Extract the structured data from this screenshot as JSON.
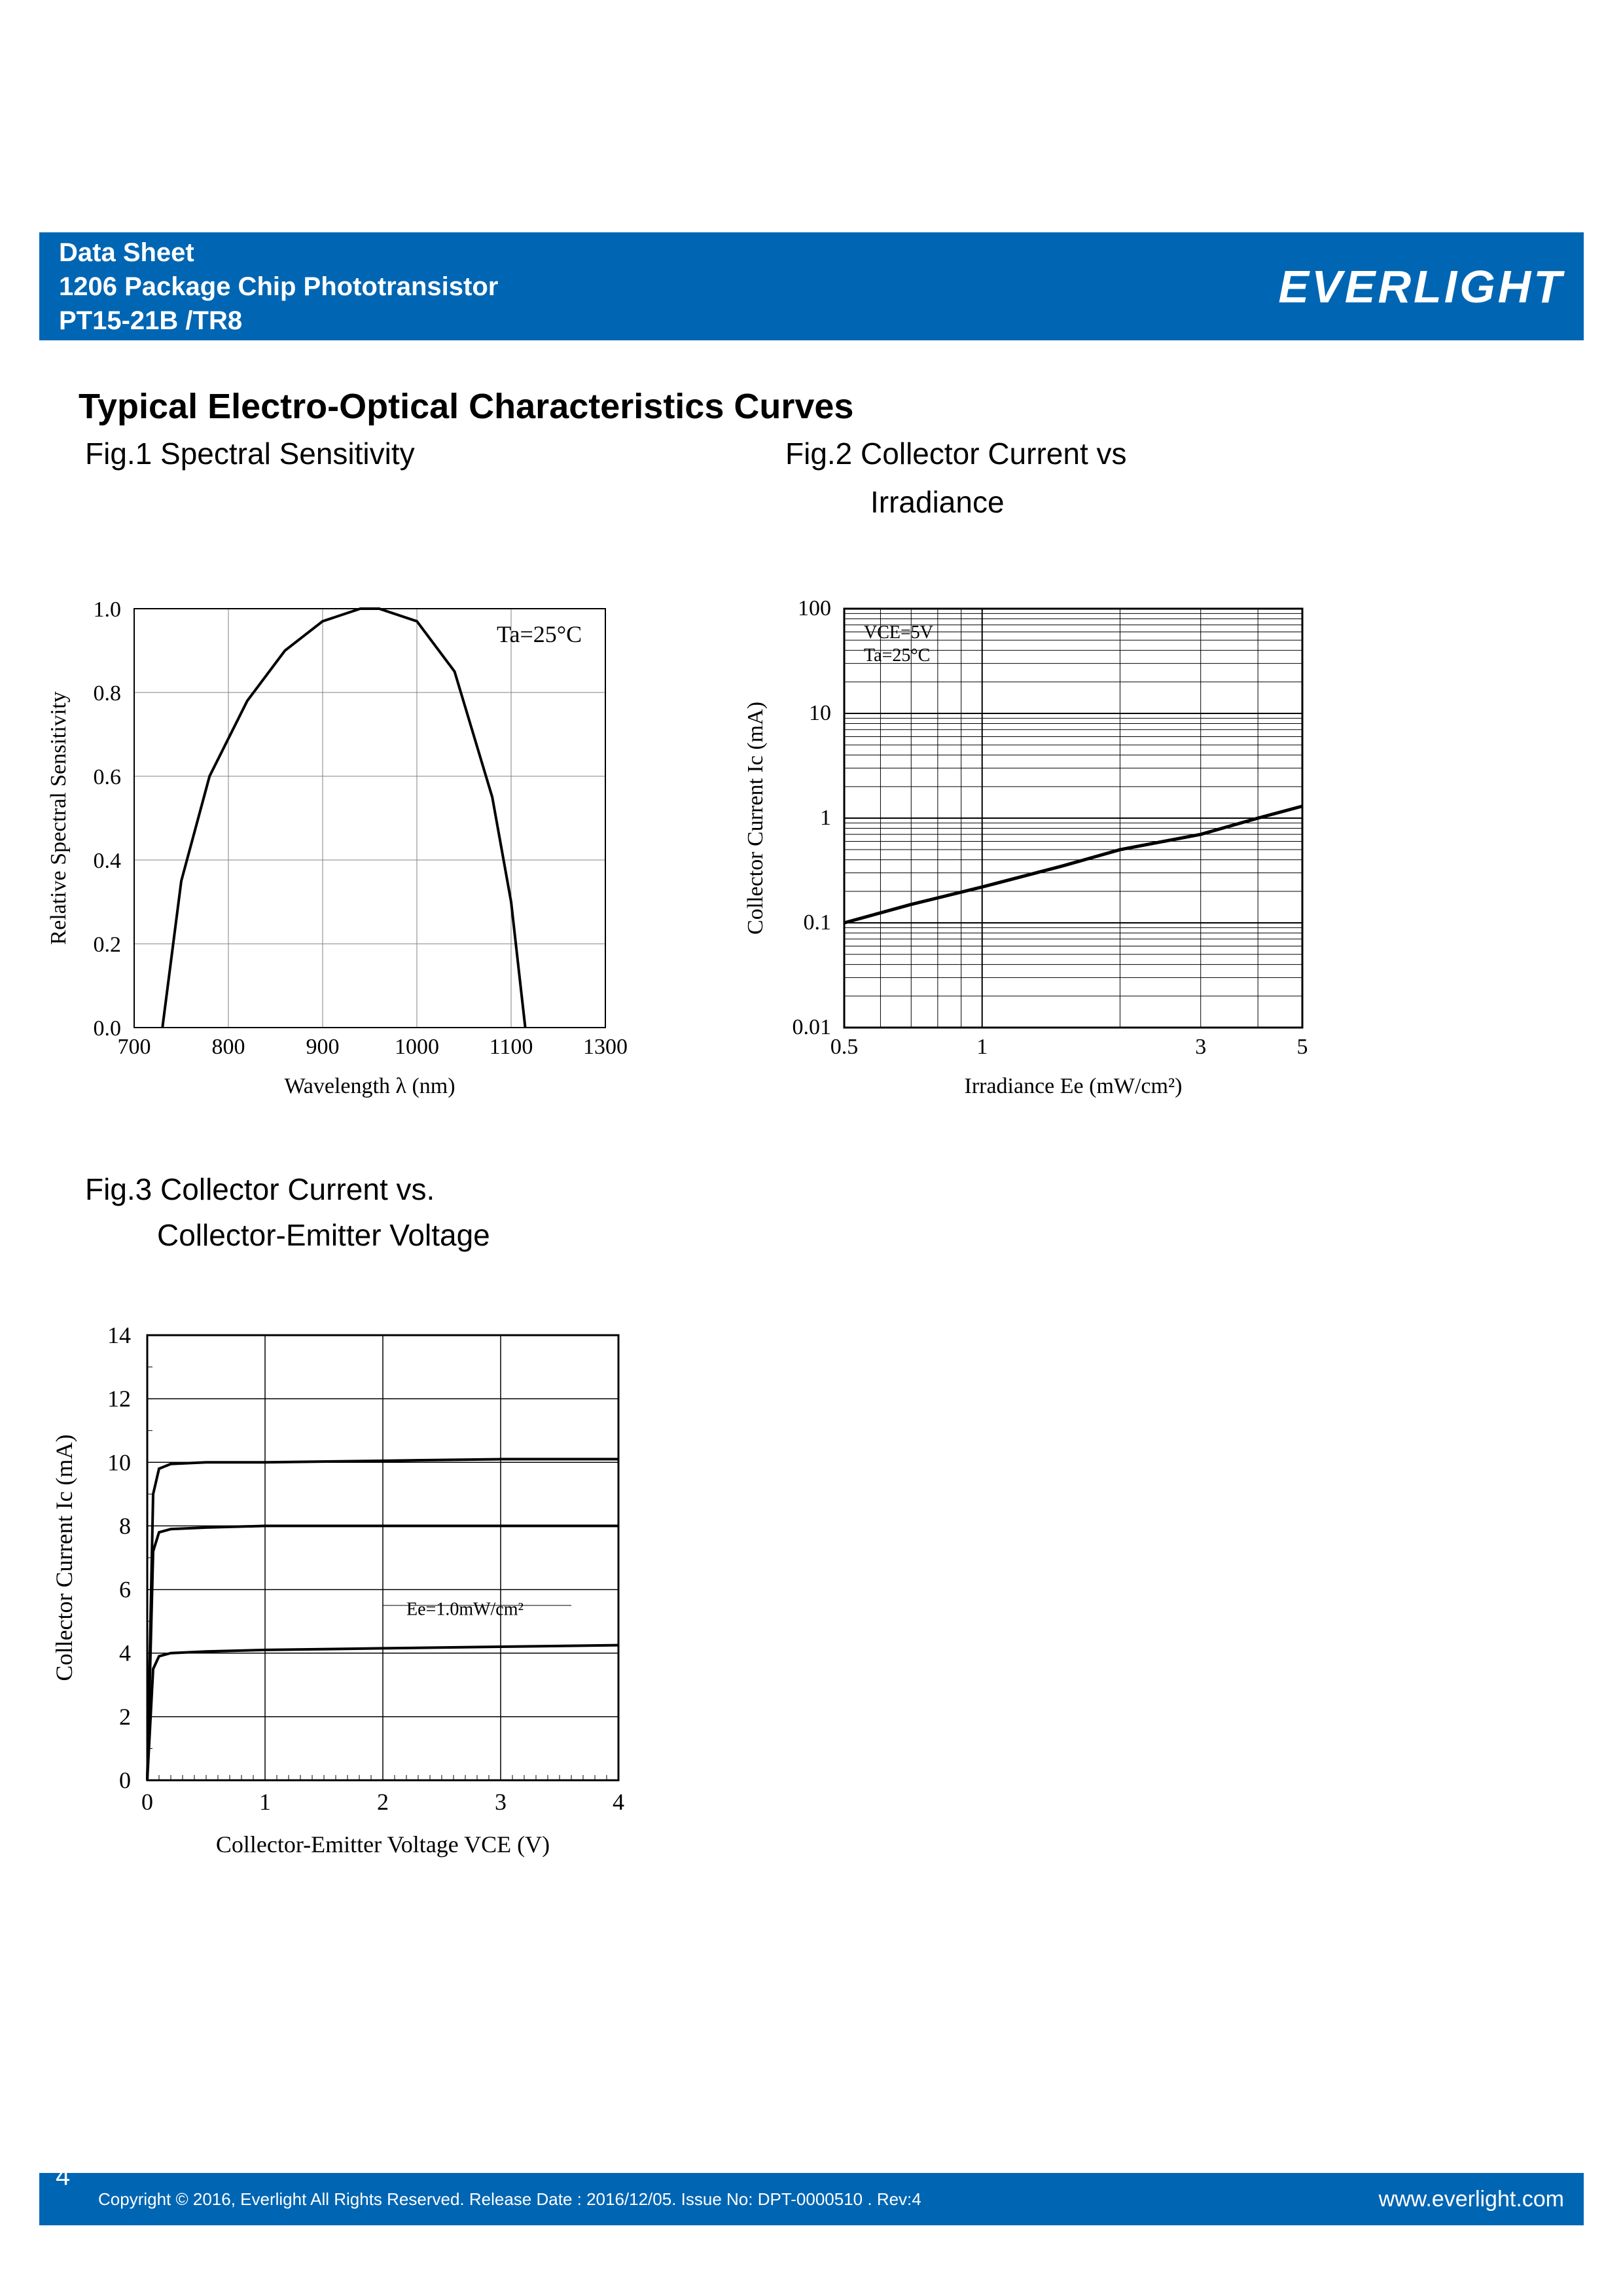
{
  "header": {
    "line1": "Data Sheet",
    "line2": "1206 Package Chip Phototransistor",
    "line3": "PT15-21B /TR8",
    "logo_text": "EVERLIGHT"
  },
  "section_title": "Typical Electro-Optical Characteristics Curves",
  "figures": {
    "fig1": {
      "caption": "Fig.1 Spectral Sensitivity",
      "annotation": "Ta=25°C",
      "type": "line",
      "xlabel": "Wavelength λ (nm)",
      "ylabel": "Relative Spectral Sensitivity",
      "xlim": [
        700,
        1300
      ],
      "ylim": [
        0,
        1.0
      ],
      "xticks": [
        700,
        800,
        900,
        1000,
        1100,
        1300
      ],
      "yticks": [
        0,
        0.2,
        0.4,
        0.6,
        0.8,
        1.0
      ],
      "xscale": "linear",
      "yscale": "linear",
      "grid": true,
      "grid_color": "#808080",
      "line_color": "#000000",
      "line_width": 3,
      "background_color": "#ffffff",
      "label_fontsize": 28,
      "tick_fontsize": 26,
      "data": {
        "x": [
          730,
          750,
          780,
          820,
          860,
          900,
          940,
          960,
          1000,
          1040,
          1080,
          1100,
          1130
        ],
        "y": [
          0,
          0.35,
          0.6,
          0.78,
          0.9,
          0.97,
          1.0,
          1.0,
          0.97,
          0.85,
          0.55,
          0.3,
          0
        ]
      }
    },
    "fig2": {
      "caption_line1": "Fig.2 Collector Current vs",
      "caption_line2": "Irradiance",
      "annotation_line1": "VCE=5V",
      "annotation_line2": "Ta=25°C",
      "type": "line",
      "xlabel": "Irradiance Ee (mW/cm²)",
      "ylabel": "Collector Current Ic (mA)",
      "xlim": [
        0.5,
        5
      ],
      "ylim": [
        0.01,
        100
      ],
      "xticks": [
        0.5,
        1,
        3,
        5
      ],
      "yticks": [
        0.01,
        0.1,
        1,
        10,
        100
      ],
      "xscale": "log",
      "yscale": "log",
      "grid": true,
      "grid_color": "#000000",
      "line_color": "#000000",
      "line_width": 4,
      "background_color": "#ffffff",
      "label_fontsize": 28,
      "tick_fontsize": 26,
      "data": {
        "x": [
          0.5,
          0.7,
          1.0,
          1.5,
          2.0,
          3.0,
          4.0,
          5.0
        ],
        "y": [
          0.1,
          0.15,
          0.22,
          0.35,
          0.5,
          0.7,
          1.0,
          1.3
        ]
      }
    },
    "fig3": {
      "caption_line1": "Fig.3 Collector Current vs.",
      "caption_line2": "Collector-Emitter Voltage",
      "annotation": "Ee=1.0mW/cm²",
      "type": "line",
      "xlabel": "Collector-Emitter Voltage VCE (V)",
      "ylabel": "Collector Current Ic (mA)",
      "xlim": [
        0,
        4
      ],
      "ylim": [
        0,
        14
      ],
      "xticks": [
        0,
        1,
        2,
        3,
        4
      ],
      "yticks": [
        0,
        2,
        4,
        6,
        8,
        10,
        12,
        14
      ],
      "xscale": "linear",
      "yscale": "linear",
      "grid": true,
      "grid_color": "#000000",
      "line_color": "#000000",
      "line_width": 4,
      "background_color": "#ffffff",
      "label_fontsize": 28,
      "tick_fontsize": 26,
      "series": [
        {
          "x": [
            0,
            0.05,
            0.1,
            0.2,
            0.5,
            1,
            2,
            3,
            4
          ],
          "y": [
            0,
            3.5,
            3.9,
            4.0,
            4.05,
            4.1,
            4.15,
            4.2,
            4.25
          ]
        },
        {
          "x": [
            0,
            0.05,
            0.1,
            0.2,
            0.5,
            1,
            2,
            3,
            4
          ],
          "y": [
            0,
            7.2,
            7.8,
            7.9,
            7.95,
            8.0,
            8.0,
            8.0,
            8.0
          ]
        },
        {
          "x": [
            0,
            0.05,
            0.1,
            0.2,
            0.5,
            1,
            2,
            3,
            4
          ],
          "y": [
            0,
            9.0,
            9.8,
            9.95,
            10.0,
            10.0,
            10.05,
            10.1,
            10.1
          ]
        }
      ]
    }
  },
  "footer": {
    "page_number": "4",
    "copyright": "Copyright © 2016, Everlight All Rights Reserved. Release Date : 2016/12/05. Issue No: DPT-0000510 . Rev:4",
    "website": "www.everlight.com"
  },
  "colors": {
    "brand_blue": "#0066b3",
    "text_black": "#000000",
    "white": "#ffffff",
    "grid_gray": "#808080"
  }
}
